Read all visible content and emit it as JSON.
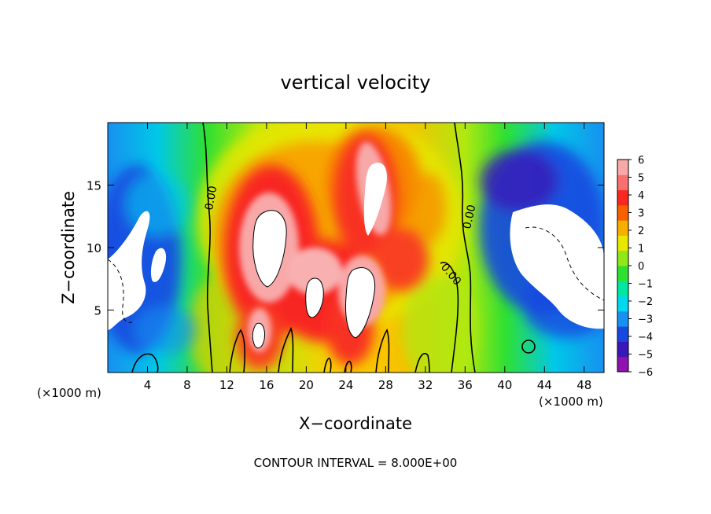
{
  "chart_data": {
    "type": "heatmap",
    "title": "vertical velocity",
    "xlabel": "X−coordinate",
    "ylabel": "Z−coordinate",
    "x_unit_left": "(×1000 m)",
    "x_unit_right": "(×1000 m)",
    "footer": "CONTOUR INTERVAL = 8.000E+00",
    "xlim": [
      0,
      50
    ],
    "ylim": [
      0,
      20
    ],
    "x_ticks": [
      "4",
      "8",
      "12",
      "16",
      "20",
      "24",
      "28",
      "32",
      "36",
      "40",
      "44",
      "48"
    ],
    "y_ticks": [
      "5",
      "10",
      "15"
    ],
    "colorbar": {
      "range": [
        -6,
        6
      ],
      "labels": [
        "6",
        "5",
        "4",
        "3",
        "2",
        "1",
        "0",
        "−1",
        "−2",
        "−3",
        "−4",
        "−5",
        "−6"
      ],
      "colors": [
        "#9010b0",
        "#3818b8",
        "#1848e0",
        "#1890f0",
        "#00d8f0",
        "#00e8a0",
        "#30e030",
        "#90e818",
        "#e8e800",
        "#f8b000",
        "#f86000",
        "#f82820",
        "#f87070",
        "#f8a8a8"
      ]
    },
    "contour_labels": [
      "0.00",
      "0.00",
      "0.00"
    ],
    "features": {
      "updrafts": [
        {
          "x": 15,
          "z": 12,
          "w": 6
        },
        {
          "x": 22,
          "z": 7,
          "w": 6
        },
        {
          "x": 25,
          "z": 6,
          "w": 6
        },
        {
          "x": 27,
          "z": 14,
          "w": 6
        },
        {
          "x": 18,
          "z": 3,
          "w": 5
        }
      ],
      "downdrafts": [
        {
          "x": 2,
          "z": 8,
          "w": -6
        },
        {
          "x": 5,
          "z": 10,
          "w": -5
        },
        {
          "x": 46,
          "z": 9,
          "w": -6
        },
        {
          "x": 44,
          "z": 14,
          "w": -5
        }
      ]
    }
  }
}
